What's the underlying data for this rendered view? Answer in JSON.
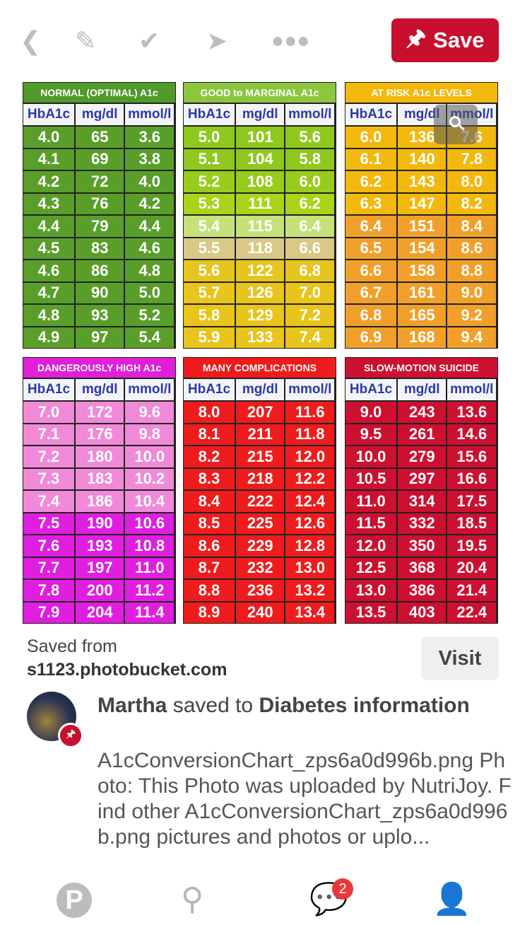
{
  "toolbar": {
    "back_icon": "chevron-left",
    "edit_icon": "pencil",
    "check_icon": "checkmark",
    "send_icon": "paper-plane",
    "more_icon": "ellipsis",
    "save_label": "Save",
    "save_color": "#c8102e"
  },
  "chart": {
    "column_headers": [
      "HbA1c",
      "mg/dl",
      "mmol/l"
    ],
    "panels": [
      {
        "title": "NORMAL (OPTIMAL) A1c",
        "title_color": "#4f9a28",
        "rows": [
          [
            "4.0",
            "65",
            "3.6"
          ],
          [
            "4.1",
            "69",
            "3.8"
          ],
          [
            "4.2",
            "72",
            "4.0"
          ],
          [
            "4.3",
            "76",
            "4.2"
          ],
          [
            "4.4",
            "79",
            "4.4"
          ],
          [
            "4.5",
            "83",
            "4.6"
          ],
          [
            "4.6",
            "86",
            "4.8"
          ],
          [
            "4.7",
            "90",
            "5.0"
          ],
          [
            "4.8",
            "93",
            "5.2"
          ],
          [
            "4.9",
            "97",
            "5.4"
          ]
        ],
        "row_colors": [
          "#5a9e2a",
          "#5a9e2a",
          "#5a9e2a",
          "#5a9e2a",
          "#5a9e2a",
          "#5a9e2a",
          "#5a9e2a",
          "#5a9e2a",
          "#5a9e2a",
          "#5a9e2a"
        ]
      },
      {
        "title": "GOOD to MARGINAL A1c",
        "title_color": "#8cc63f",
        "rows": [
          [
            "5.0",
            "101",
            "5.6"
          ],
          [
            "5.1",
            "104",
            "5.8"
          ],
          [
            "5.2",
            "108",
            "6.0"
          ],
          [
            "5.3",
            "111",
            "6.2"
          ],
          [
            "5.4",
            "115",
            "6.4"
          ],
          [
            "5.5",
            "118",
            "6.6"
          ],
          [
            "5.6",
            "122",
            "6.8"
          ],
          [
            "5.7",
            "126",
            "7.0"
          ],
          [
            "5.8",
            "129",
            "7.2"
          ],
          [
            "5.9",
            "133",
            "7.4"
          ]
        ],
        "row_colors": [
          "#8fc81e",
          "#8fc81e",
          "#98cc1c",
          "#a8d41a",
          "#c6e07a",
          "#d9c986",
          "#e6c51e",
          "#e8c41c",
          "#e8c41c",
          "#e8c41c"
        ]
      },
      {
        "title": "AT RISK A1c LEVELS",
        "title_color": "#f2b80e",
        "rows": [
          [
            "6.0",
            "136",
            "7.6"
          ],
          [
            "6.1",
            "140",
            "7.8"
          ],
          [
            "6.2",
            "143",
            "8.0"
          ],
          [
            "6.3",
            "147",
            "8.2"
          ],
          [
            "6.4",
            "151",
            "8.4"
          ],
          [
            "6.5",
            "154",
            "8.6"
          ],
          [
            "6.6",
            "158",
            "8.8"
          ],
          [
            "6.7",
            "161",
            "9.0"
          ],
          [
            "6.8",
            "165",
            "9.2"
          ],
          [
            "6.9",
            "168",
            "9.4"
          ]
        ],
        "row_colors": [
          "#f2b80e",
          "#f2b80e",
          "#f2b80e",
          "#f2b80e",
          "#f0a02a",
          "#f0a02a",
          "#f0a02a",
          "#f0a02a",
          "#f0a02a",
          "#f0a02a"
        ]
      },
      {
        "title": "DANGEROUSLY HIGH A1c",
        "title_color": "#e020d8",
        "rows": [
          [
            "7.0",
            "172",
            "9.6"
          ],
          [
            "7.1",
            "176",
            "9.8"
          ],
          [
            "7.2",
            "180",
            "10.0"
          ],
          [
            "7.3",
            "183",
            "10.2"
          ],
          [
            "7.4",
            "186",
            "10.4"
          ],
          [
            "7.5",
            "190",
            "10.6"
          ],
          [
            "7.6",
            "193",
            "10.8"
          ],
          [
            "7.7",
            "197",
            "11.0"
          ],
          [
            "7.8",
            "200",
            "11.2"
          ],
          [
            "7.9",
            "204",
            "11.4"
          ]
        ],
        "row_colors": [
          "#f08ad8",
          "#f08ad8",
          "#f08ad8",
          "#f08ad8",
          "#f08ad8",
          "#e01ee0",
          "#e01ee0",
          "#e01ee0",
          "#e01ee0",
          "#e01ee0"
        ]
      },
      {
        "title": "MANY COMPLICATIONS",
        "title_color": "#ee1c1c",
        "rows": [
          [
            "8.0",
            "207",
            "11.6"
          ],
          [
            "8.1",
            "211",
            "11.8"
          ],
          [
            "8.2",
            "215",
            "12.0"
          ],
          [
            "8.3",
            "218",
            "12.2"
          ],
          [
            "8.4",
            "222",
            "12.4"
          ],
          [
            "8.5",
            "225",
            "12.6"
          ],
          [
            "8.6",
            "229",
            "12.8"
          ],
          [
            "8.7",
            "232",
            "13.0"
          ],
          [
            "8.8",
            "236",
            "13.2"
          ],
          [
            "8.9",
            "240",
            "13.4"
          ]
        ],
        "row_colors": [
          "#ee1c1c",
          "#ee1c1c",
          "#ee1c1c",
          "#ee1c1c",
          "#ee1c1c",
          "#ee1c1c",
          "#ee1c1c",
          "#ee1c1c",
          "#ee1c1c",
          "#ee1c1c"
        ]
      },
      {
        "title": "SLOW-MOTION SUICIDE",
        "title_color": "#cc1030",
        "rows": [
          [
            "9.0",
            "243",
            "13.6"
          ],
          [
            "9.5",
            "261",
            "14.6"
          ],
          [
            "10.0",
            "279",
            "15.6"
          ],
          [
            "10.5",
            "297",
            "16.6"
          ],
          [
            "11.0",
            "314",
            "17.5"
          ],
          [
            "11.5",
            "332",
            "18.5"
          ],
          [
            "12.0",
            "350",
            "19.5"
          ],
          [
            "12.5",
            "368",
            "20.4"
          ],
          [
            "13.0",
            "386",
            "21.4"
          ],
          [
            "13.5",
            "403",
            "22.4"
          ]
        ],
        "row_colors": [
          "#cc1030",
          "#cc1030",
          "#cc1030",
          "#cc1030",
          "#cc1030",
          "#cc1030",
          "#cc1030",
          "#cc1030",
          "#cc1030",
          "#cc1030"
        ]
      }
    ]
  },
  "source": {
    "label": "Saved from",
    "domain": "s1123.photobucket.com",
    "visit_label": "Visit"
  },
  "pin": {
    "user": "Martha",
    "action": " saved to ",
    "board": "Diabetes information",
    "description": "A1cConversionChart_zps6a0d996b.png Photo: This Photo was uploaded by NutriJoy. Find other A1cConversionChart_zps6a0d996b.png pictures and photos or uplo..."
  },
  "nav": {
    "home_icon": "pinterest-logo",
    "search_icon": "search",
    "messages_icon": "chat-bubble",
    "messages_badge": "2",
    "profile_icon": "person"
  }
}
